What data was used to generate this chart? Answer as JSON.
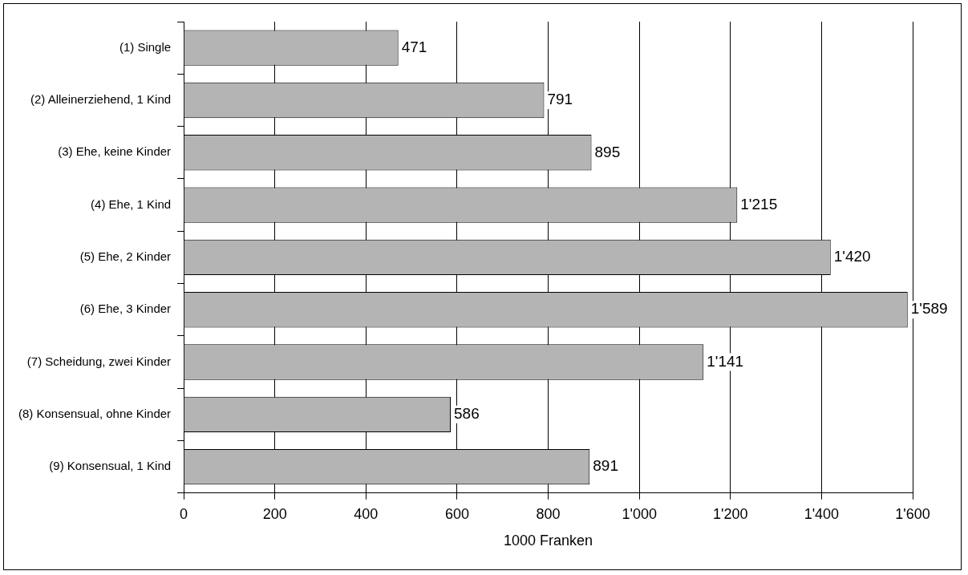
{
  "chart_data": {
    "type": "bar",
    "orientation": "horizontal",
    "xlabel": "1000 Franken",
    "categories": [
      "(1) Single",
      "(2) Alleinerziehend, 1 Kind",
      "(3) Ehe, keine Kinder",
      "(4) Ehe, 1 Kind",
      "(5) Ehe, 2 Kinder",
      "(6) Ehe, 3 Kinder",
      "(7) Scheidung, zwei Kinder",
      "(8) Konsensual, ohne Kinder",
      "(9) Konsensual, 1 Kind"
    ],
    "values": [
      471,
      791,
      895,
      1215,
      1420,
      1589,
      1141,
      586,
      891
    ],
    "value_labels": [
      "471",
      "791",
      "895",
      "1'215",
      "1'420",
      "1'589",
      "1'141",
      "586",
      "891"
    ],
    "color": "#b4b4b4",
    "xlim": [
      0,
      1600
    ],
    "xticks": [
      0,
      200,
      400,
      600,
      800,
      {
        "value": 1000,
        "label": "1'000"
      },
      {
        "value": 1200,
        "label": "1'200"
      },
      {
        "value": 1400,
        "label": "1'400"
      },
      {
        "value": 1600,
        "label": "1'600"
      }
    ],
    "grid": "x",
    "legend": false
  }
}
